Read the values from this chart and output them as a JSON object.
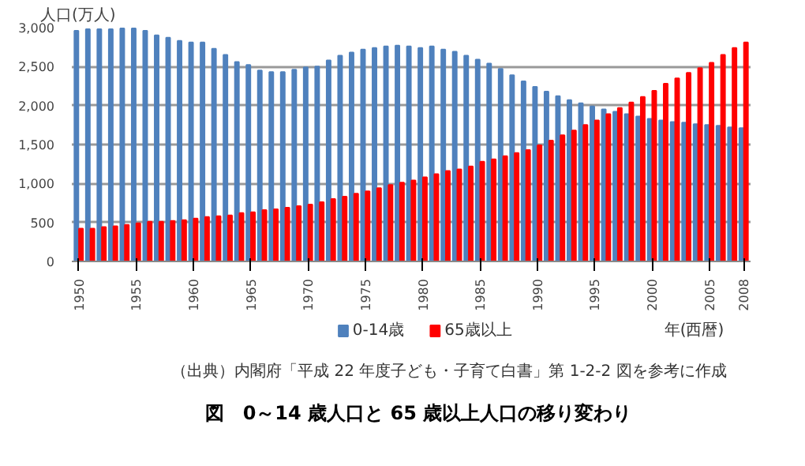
{
  "chart_data": {
    "type": "bar",
    "title": "図　0～14 歳人口と 65 歳以上人口の移り変わり",
    "ylabel": "人口(万人)",
    "xlabel": "年(西暦)",
    "annotations": [
      "（出典）内閣府「平成 22 年度子ども・子育て白書」第 1-2-2 図を参考に作成"
    ],
    "categories": [
      "1950",
      null,
      null,
      null,
      null,
      "1955",
      null,
      null,
      null,
      null,
      "1960",
      null,
      null,
      null,
      null,
      "1965",
      null,
      null,
      null,
      null,
      "1970",
      null,
      null,
      null,
      null,
      "1975",
      null,
      null,
      null,
      null,
      "1980",
      null,
      null,
      null,
      null,
      "1985",
      null,
      null,
      null,
      null,
      "1990",
      null,
      null,
      null,
      null,
      "1995",
      null,
      null,
      null,
      null,
      "2000",
      null,
      null,
      null,
      null,
      "2005",
      null,
      null,
      "2008"
    ],
    "series": [
      {
        "name": "0-14歳",
        "color": "#4f81bd",
        "values": [
          2960,
          2980,
          2980,
          2980,
          2990,
          2990,
          2960,
          2900,
          2870,
          2830,
          2810,
          2810,
          2730,
          2650,
          2560,
          2520,
          2450,
          2430,
          2430,
          2460,
          2490,
          2500,
          2580,
          2640,
          2680,
          2720,
          2740,
          2760,
          2770,
          2760,
          2740,
          2760,
          2720,
          2690,
          2640,
          2590,
          2540,
          2470,
          2390,
          2310,
          2240,
          2180,
          2120,
          2070,
          2030,
          1990,
          1950,
          1920,
          1890,
          1860,
          1830,
          1810,
          1790,
          1780,
          1760,
          1750,
          1740,
          1720,
          1710
        ]
      },
      {
        "name": "65歳以上",
        "color": "#ff0000",
        "values": [
          420,
          420,
          440,
          450,
          470,
          490,
          510,
          510,
          520,
          530,
          550,
          570,
          580,
          590,
          620,
          630,
          660,
          670,
          690,
          710,
          730,
          760,
          800,
          830,
          870,
          900,
          940,
          980,
          1010,
          1040,
          1080,
          1120,
          1160,
          1180,
          1220,
          1280,
          1310,
          1350,
          1390,
          1430,
          1490,
          1550,
          1620,
          1680,
          1750,
          1810,
          1890,
          1970,
          2040,
          2110,
          2190,
          2280,
          2350,
          2420,
          2480,
          2550,
          2650,
          2740,
          2810
        ]
      }
    ],
    "ylim": [
      0,
      3000
    ],
    "yticks": [
      {
        "value": 0,
        "label": "0"
      },
      {
        "value": 500,
        "label": "500"
      },
      {
        "value": 1000,
        "label": "1,000"
      },
      {
        "value": 1500,
        "label": "1,500"
      },
      {
        "value": 2000,
        "label": "2,000"
      },
      {
        "value": 2500,
        "label": "2,500"
      },
      {
        "value": 3000,
        "label": "3,000"
      }
    ],
    "grid": "y",
    "legend": "bottom"
  }
}
